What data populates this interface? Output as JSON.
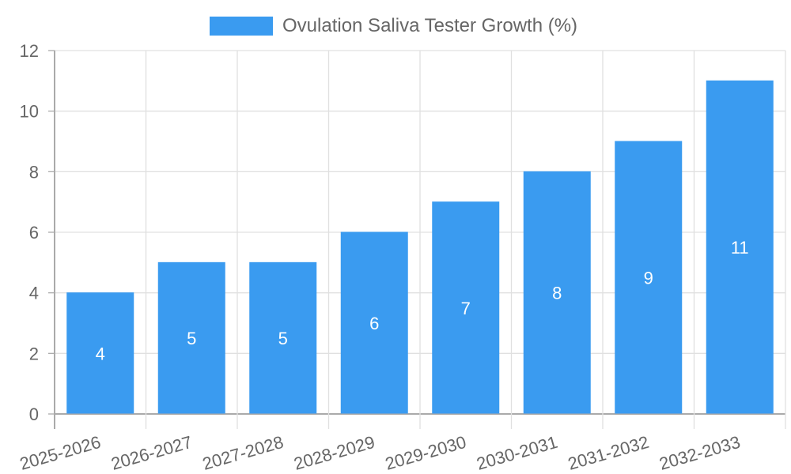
{
  "chart_data": {
    "type": "bar",
    "title": "",
    "legend": [
      "Ovulation Saliva Tester Growth (%)"
    ],
    "legend_position": "top",
    "categories": [
      "2025-2026",
      "2026-2027",
      "2027-2028",
      "2028-2029",
      "2029-2030",
      "2030-2031",
      "2031-2032",
      "2032-2033"
    ],
    "series": [
      {
        "name": "Ovulation Saliva Tester Growth (%)",
        "values": [
          4,
          5,
          5,
          6,
          7,
          8,
          9,
          11
        ],
        "color": "#3a9bf0"
      }
    ],
    "xlabel": "",
    "ylabel": "",
    "ylim": [
      0,
      12
    ],
    "yticks": [
      0,
      2,
      4,
      6,
      8,
      10,
      12
    ],
    "grid": true,
    "data_labels": true
  },
  "legend": {
    "label": "Ovulation Saliva Tester Growth (%)",
    "color": "#3a9bf0"
  }
}
